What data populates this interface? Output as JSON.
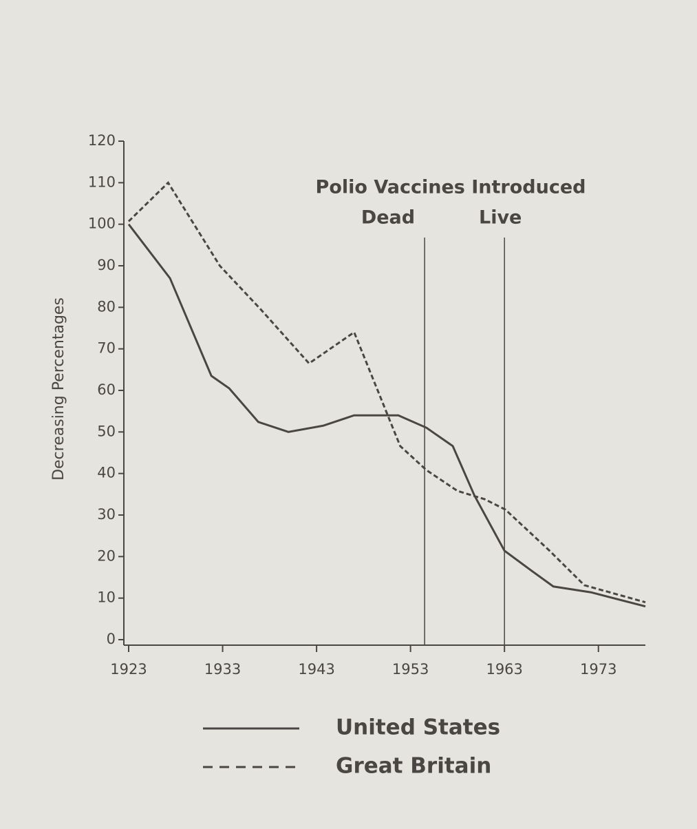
{
  "chart_data": {
    "type": "line",
    "ylabel": "Decreasing Percentages",
    "xlim": [
      1923,
      1978
    ],
    "xticks": [
      1923,
      1933,
      1943,
      1953,
      1963,
      1973
    ],
    "ylim": [
      0,
      120
    ],
    "yticks": [
      0,
      10,
      20,
      30,
      40,
      50,
      60,
      70,
      80,
      90,
      100,
      110,
      120
    ],
    "annotation_title": "Polio Vaccines Introduced",
    "vlines": [
      {
        "x": 1954.5,
        "label": "Dead"
      },
      {
        "x": 1963,
        "label": "Live"
      }
    ],
    "series": [
      {
        "name": "United States",
        "color": "#4a4644",
        "dash": "solid",
        "x": [
          1923,
          1927.4,
          1931.8,
          1933.7,
          1936.8,
          1940,
          1943.7,
          1947,
          1951.7,
          1954.7,
          1957.5,
          1959.8,
          1963,
          1966,
          1968.2,
          1972.2,
          1978
        ],
        "values": [
          100,
          87,
          63.5,
          60.5,
          52.4,
          50,
          51.5,
          54,
          54,
          51,
          46.6,
          34.7,
          21.4,
          16.4,
          12.8,
          11.4,
          8
        ]
      },
      {
        "name": "Great Britain",
        "color": "#4a4644",
        "dash": "dashed",
        "x": [
          1923,
          1927.2,
          1932.7,
          1937.1,
          1942.2,
          1947,
          1951.9,
          1954.7,
          1958,
          1960.9,
          1963.1,
          1967.8,
          1971.5,
          1978
        ],
        "values": [
          100.7,
          110,
          90,
          79.4,
          66.5,
          74,
          46.6,
          40.8,
          35.8,
          33.8,
          31.3,
          21.4,
          13.1,
          9
        ]
      }
    ]
  }
}
